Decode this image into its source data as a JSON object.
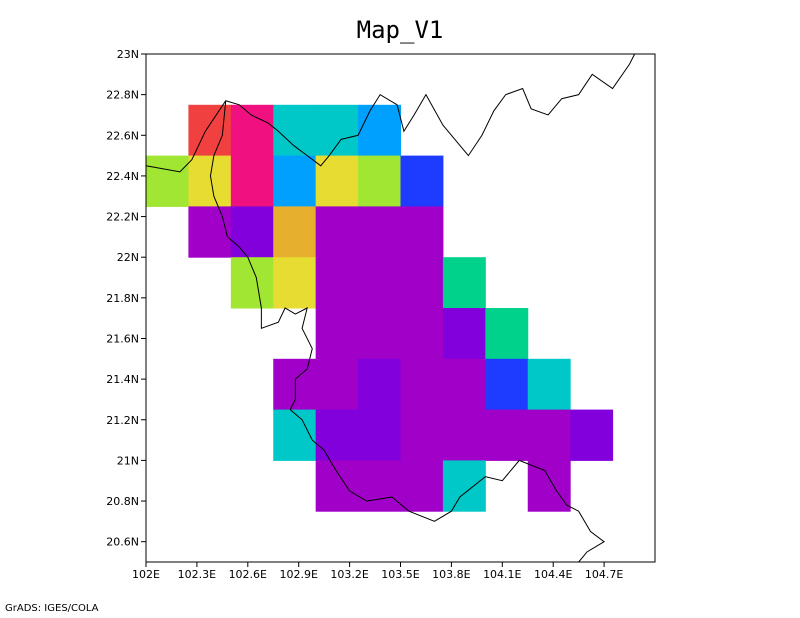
{
  "title": "Map_V1",
  "credit": "GrADS: IGES/COLA",
  "y_tick_labels": [
    "23N",
    "22.8N",
    "22.6N",
    "22.4N",
    "22.2N",
    "22N",
    "21.8N",
    "21.6N",
    "21.4N",
    "21.2N",
    "21N",
    "20.8N",
    "20.6N"
  ],
  "x_tick_labels": [
    "102E",
    "102.3E",
    "102.6E",
    "102.9E",
    "103.2E",
    "103.5E",
    "103.8E",
    "104.1E",
    "104.4E",
    "104.7E"
  ],
  "chart_data": {
    "type": "heatmap",
    "title": "Map_V1",
    "xlabel": "",
    "ylabel": "",
    "xlim": [
      102.0,
      105.0
    ],
    "ylim": [
      20.5,
      23.0
    ],
    "grid_cell_deg": [
      0.25,
      0.25
    ],
    "cells": [
      {
        "lon": 102.375,
        "lat": 22.625,
        "color": "#f04040"
      },
      {
        "lon": 102.625,
        "lat": 22.625,
        "color": "#f0107f"
      },
      {
        "lon": 102.875,
        "lat": 22.625,
        "color": "#00c8c8"
      },
      {
        "lon": 103.125,
        "lat": 22.625,
        "color": "#00c8c8"
      },
      {
        "lon": 103.375,
        "lat": 22.625,
        "color": "#00a0ff"
      },
      {
        "lon": 102.125,
        "lat": 22.375,
        "color": "#a0e632"
      },
      {
        "lon": 102.375,
        "lat": 22.375,
        "color": "#e6dc32"
      },
      {
        "lon": 102.625,
        "lat": 22.375,
        "color": "#f0107f"
      },
      {
        "lon": 102.875,
        "lat": 22.375,
        "color": "#00a0ff"
      },
      {
        "lon": 103.125,
        "lat": 22.375,
        "color": "#e6dc32"
      },
      {
        "lon": 103.375,
        "lat": 22.375,
        "color": "#a0e632"
      },
      {
        "lon": 103.625,
        "lat": 22.375,
        "color": "#1e3cff"
      },
      {
        "lon": 102.375,
        "lat": 22.125,
        "color": "#a000c8"
      },
      {
        "lon": 102.625,
        "lat": 22.125,
        "color": "#8200dc"
      },
      {
        "lon": 102.875,
        "lat": 22.125,
        "color": "#e6af2d"
      },
      {
        "lon": 103.125,
        "lat": 22.125,
        "color": "#a000c8"
      },
      {
        "lon": 103.375,
        "lat": 22.125,
        "color": "#a000c8"
      },
      {
        "lon": 103.625,
        "lat": 22.125,
        "color": "#a000c8"
      },
      {
        "lon": 102.625,
        "lat": 21.875,
        "color": "#a0e632"
      },
      {
        "lon": 102.875,
        "lat": 21.875,
        "color": "#e6dc32"
      },
      {
        "lon": 103.125,
        "lat": 21.875,
        "color": "#a000c8"
      },
      {
        "lon": 103.375,
        "lat": 21.875,
        "color": "#a000c8"
      },
      {
        "lon": 103.625,
        "lat": 21.875,
        "color": "#a000c8"
      },
      {
        "lon": 103.875,
        "lat": 21.875,
        "color": "#00d28c"
      },
      {
        "lon": 103.125,
        "lat": 21.625,
        "color": "#a000c8"
      },
      {
        "lon": 103.375,
        "lat": 21.625,
        "color": "#a000c8"
      },
      {
        "lon": 103.625,
        "lat": 21.625,
        "color": "#a000c8"
      },
      {
        "lon": 103.875,
        "lat": 21.625,
        "color": "#8200dc"
      },
      {
        "lon": 104.125,
        "lat": 21.625,
        "color": "#00d28c"
      },
      {
        "lon": 102.875,
        "lat": 21.375,
        "color": "#a000c8"
      },
      {
        "lon": 103.125,
        "lat": 21.375,
        "color": "#a000c8"
      },
      {
        "lon": 103.375,
        "lat": 21.375,
        "color": "#8200dc"
      },
      {
        "lon": 103.625,
        "lat": 21.375,
        "color": "#a000c8"
      },
      {
        "lon": 103.875,
        "lat": 21.375,
        "color": "#a000c8"
      },
      {
        "lon": 104.125,
        "lat": 21.375,
        "color": "#1e3cff"
      },
      {
        "lon": 104.375,
        "lat": 21.375,
        "color": "#00c8c8"
      },
      {
        "lon": 102.875,
        "lat": 21.125,
        "color": "#00c8c8"
      },
      {
        "lon": 103.125,
        "lat": 21.125,
        "color": "#8200dc"
      },
      {
        "lon": 103.375,
        "lat": 21.125,
        "color": "#8200dc"
      },
      {
        "lon": 103.625,
        "lat": 21.125,
        "color": "#a000c8"
      },
      {
        "lon": 103.875,
        "lat": 21.125,
        "color": "#a000c8"
      },
      {
        "lon": 104.125,
        "lat": 21.125,
        "color": "#a000c8"
      },
      {
        "lon": 104.375,
        "lat": 21.125,
        "color": "#a000c8"
      },
      {
        "lon": 104.625,
        "lat": 21.125,
        "color": "#8200dc"
      },
      {
        "lon": 103.125,
        "lat": 20.875,
        "color": "#a000c8"
      },
      {
        "lon": 103.375,
        "lat": 20.875,
        "color": "#a000c8"
      },
      {
        "lon": 103.625,
        "lat": 20.875,
        "color": "#a000c8"
      },
      {
        "lon": 103.875,
        "lat": 20.875,
        "color": "#00c8c8"
      },
      {
        "lon": 104.375,
        "lat": 20.875,
        "color": "#a000c8"
      }
    ],
    "borders": [
      [
        [
          102.0,
          22.45
        ],
        [
          102.2,
          22.42
        ],
        [
          102.27,
          22.48
        ],
        [
          102.35,
          22.62
        ],
        [
          102.47,
          22.77
        ],
        [
          102.55,
          22.75
        ],
        [
          102.62,
          22.7
        ],
        [
          102.72,
          22.66
        ],
        [
          102.78,
          22.62
        ],
        [
          102.87,
          22.55
        ],
        [
          102.95,
          22.5
        ],
        [
          103.03,
          22.45
        ],
        [
          103.08,
          22.5
        ],
        [
          103.15,
          22.58
        ],
        [
          103.25,
          22.6
        ],
        [
          103.32,
          22.72
        ],
        [
          103.38,
          22.8
        ],
        [
          103.48,
          22.75
        ],
        [
          103.52,
          22.62
        ],
        [
          103.58,
          22.7
        ],
        [
          103.65,
          22.8
        ],
        [
          103.75,
          22.65
        ],
        [
          103.9,
          22.5
        ],
        [
          103.98,
          22.6
        ],
        [
          104.05,
          22.72
        ],
        [
          104.12,
          22.8
        ],
        [
          104.22,
          22.83
        ],
        [
          104.27,
          22.73
        ],
        [
          104.37,
          22.7
        ],
        [
          104.45,
          22.78
        ],
        [
          104.55,
          22.8
        ],
        [
          104.63,
          22.9
        ],
        [
          104.75,
          22.83
        ],
        [
          104.85,
          22.95
        ],
        [
          104.88,
          23.0
        ]
      ],
      [
        [
          102.47,
          22.77
        ],
        [
          102.45,
          22.6
        ],
        [
          102.4,
          22.5
        ],
        [
          102.38,
          22.4
        ],
        [
          102.4,
          22.3
        ],
        [
          102.45,
          22.2
        ],
        [
          102.48,
          22.1
        ],
        [
          102.55,
          22.05
        ],
        [
          102.6,
          22.0
        ],
        [
          102.65,
          21.9
        ],
        [
          102.68,
          21.75
        ],
        [
          102.68,
          21.65
        ],
        [
          102.78,
          21.68
        ],
        [
          102.82,
          21.75
        ],
        [
          102.88,
          21.72
        ],
        [
          102.95,
          21.75
        ],
        [
          102.92,
          21.65
        ],
        [
          102.98,
          21.55
        ],
        [
          102.95,
          21.45
        ],
        [
          102.88,
          21.4
        ],
        [
          102.88,
          21.3
        ],
        [
          102.85,
          21.25
        ],
        [
          102.92,
          21.2
        ],
        [
          102.98,
          21.1
        ],
        [
          103.05,
          21.05
        ],
        [
          103.12,
          20.95
        ],
        [
          103.2,
          20.85
        ],
        [
          103.3,
          20.8
        ],
        [
          103.45,
          20.82
        ],
        [
          103.55,
          20.75
        ],
        [
          103.7,
          20.7
        ],
        [
          103.8,
          20.75
        ],
        [
          103.85,
          20.82
        ],
        [
          104.0,
          20.92
        ],
        [
          104.1,
          20.9
        ],
        [
          104.2,
          21.0
        ],
        [
          104.35,
          20.95
        ],
        [
          104.42,
          20.85
        ],
        [
          104.48,
          20.78
        ],
        [
          104.55,
          20.75
        ],
        [
          104.62,
          20.65
        ],
        [
          104.7,
          20.6
        ],
        [
          104.6,
          20.55
        ],
        [
          104.55,
          20.5
        ]
      ]
    ]
  }
}
